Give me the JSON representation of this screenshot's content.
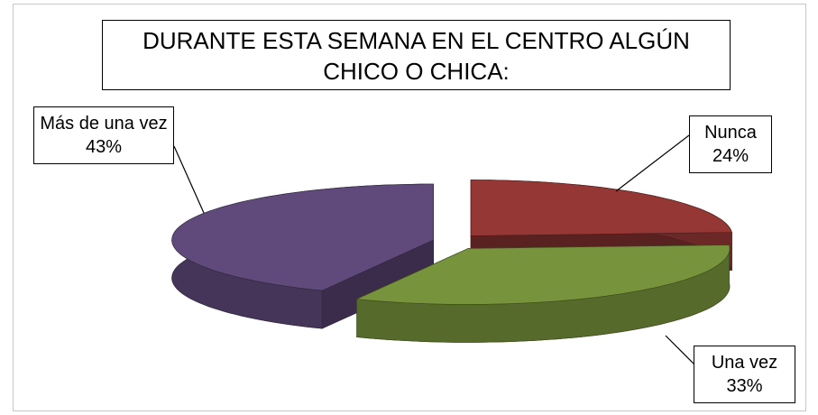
{
  "chart_data": {
    "type": "pie",
    "title": "DURANTE ESTA SEMANA EN EL CENTRO ALGÚN CHICO O CHICA:",
    "categories": [
      "Nunca",
      "Una vez",
      "Más de una vez"
    ],
    "values": [
      24,
      33,
      43
    ],
    "value_labels": [
      "24%",
      "33%",
      "43%"
    ],
    "colors": [
      "#953735",
      "#77933c",
      "#604a7b"
    ]
  }
}
